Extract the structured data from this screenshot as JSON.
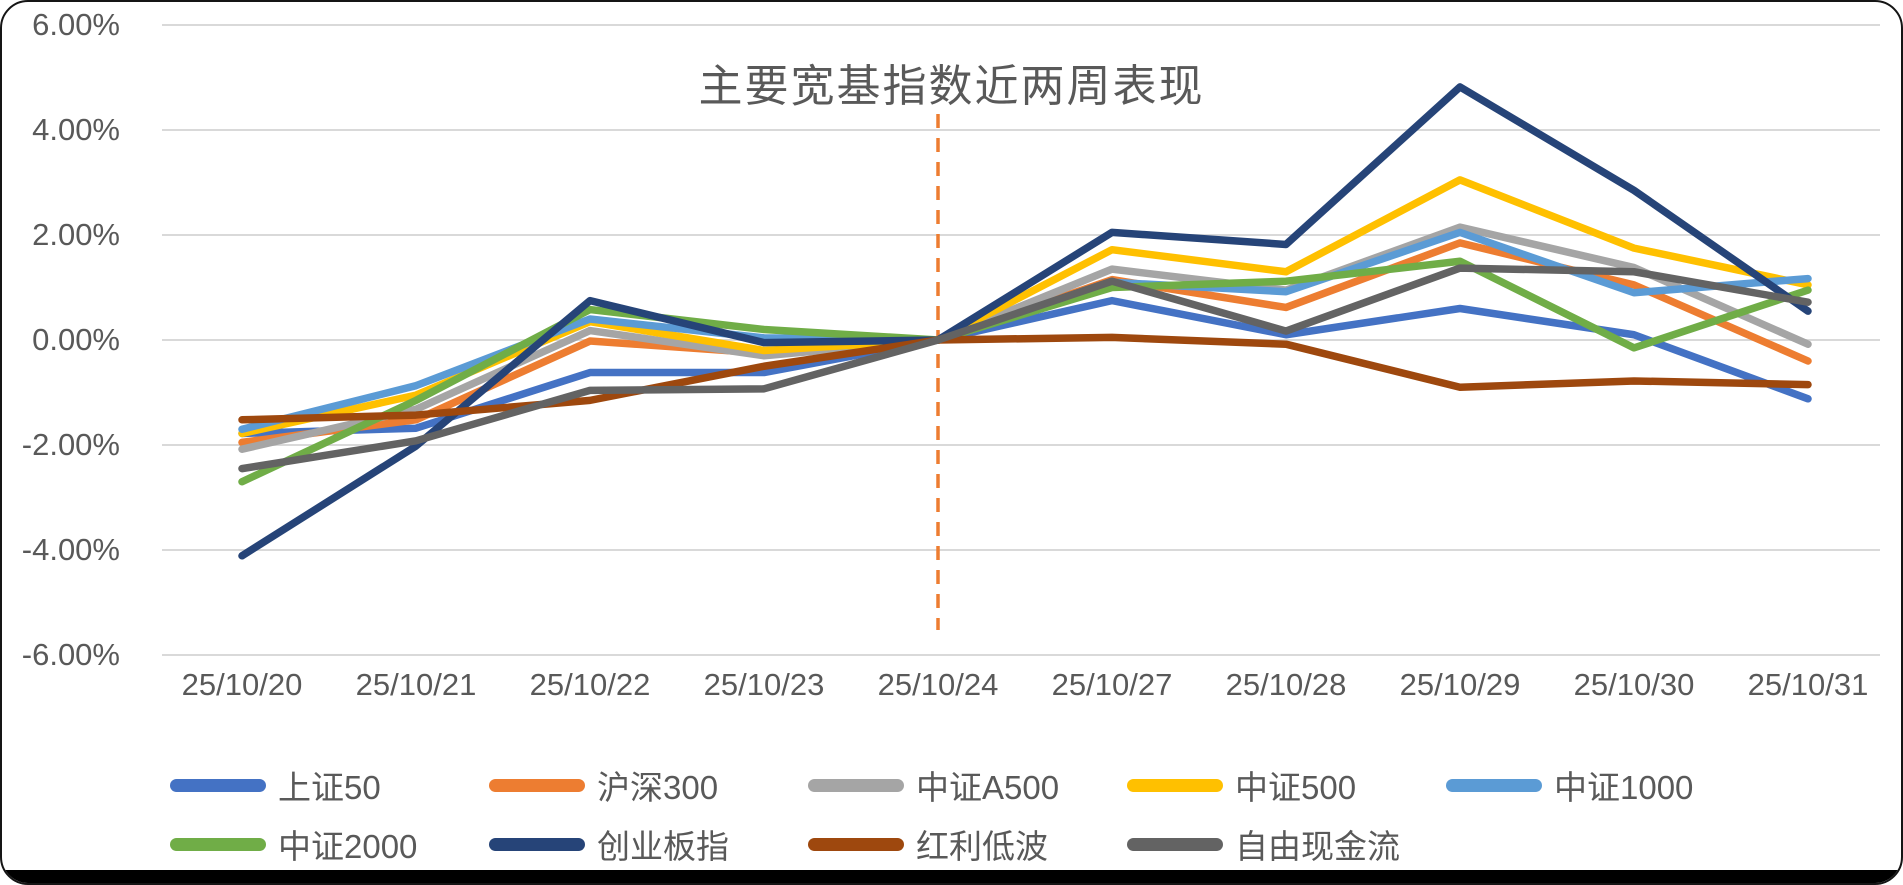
{
  "title": "主要宽基指数近两周表现",
  "accent_colors": {
    "gridline": "#D9D9D9",
    "axis_text": "#595959",
    "divider_line": "#ED7D31",
    "bottom_bar": "#000000"
  },
  "chart_data": {
    "type": "line",
    "title": "主要宽基指数近两周表现",
    "xlabel": "",
    "ylabel": "",
    "ylim": [
      -6,
      6
    ],
    "grid": true,
    "legend_position": "bottom",
    "categories": [
      "25/10/20",
      "25/10/21",
      "25/10/22",
      "25/10/23",
      "25/10/24",
      "25/10/27",
      "25/10/28",
      "25/10/29",
      "25/10/30",
      "25/10/31"
    ],
    "y_ticks": [
      {
        "label": "6.00%",
        "value": 6
      },
      {
        "label": "4.00%",
        "value": 4
      },
      {
        "label": "2.00%",
        "value": 2
      },
      {
        "label": "0.00%",
        "value": 0
      },
      {
        "label": "-2.00%",
        "value": -2
      },
      {
        "label": "-4.00%",
        "value": -4
      },
      {
        "label": "-6.00%",
        "value": -6
      }
    ],
    "annotation": {
      "type": "vline",
      "at_category": "25/10/24",
      "style": "dashed",
      "color": "#ED7D31"
    },
    "series": [
      {
        "name": "上证50",
        "color": "#4472C4",
        "values": [
          -1.78,
          -1.68,
          -0.62,
          -0.62,
          0,
          0.75,
          0.1,
          0.6,
          0.1,
          -1.12
        ]
      },
      {
        "name": "沪深300",
        "color": "#ED7D31",
        "values": [
          -1.95,
          -1.52,
          -0.02,
          -0.25,
          0,
          1.15,
          0.62,
          1.85,
          1.05,
          -0.4
        ]
      },
      {
        "name": "中证A500",
        "color": "#A5A5A5",
        "values": [
          -2.08,
          -1.32,
          0.18,
          -0.3,
          0,
          1.35,
          0.95,
          2.15,
          1.38,
          -0.08
        ]
      },
      {
        "name": "中证500",
        "color": "#FFC000",
        "values": [
          -1.78,
          -1.05,
          0.35,
          -0.2,
          0,
          1.72,
          1.3,
          3.05,
          1.75,
          1.05
        ]
      },
      {
        "name": "中证1000",
        "color": "#5B9BD5",
        "values": [
          -1.7,
          -0.87,
          0.4,
          0.04,
          0,
          1.1,
          0.92,
          2.05,
          0.9,
          1.17
        ]
      },
      {
        "name": "中证2000",
        "color": "#70AD47",
        "values": [
          -2.7,
          -1.15,
          0.58,
          0.2,
          0,
          1.0,
          1.12,
          1.5,
          -0.15,
          0.95
        ]
      },
      {
        "name": "创业板指",
        "color": "#264478",
        "values": [
          -4.11,
          -2.02,
          0.75,
          -0.05,
          0,
          2.05,
          1.82,
          4.82,
          2.85,
          0.55
        ]
      },
      {
        "name": "红利低波",
        "color": "#9E480E",
        "values": [
          -1.52,
          -1.43,
          -1.15,
          -0.5,
          0,
          0.05,
          -0.08,
          -0.9,
          -0.78,
          -0.85
        ]
      },
      {
        "name": "自由现金流",
        "color": "#636363",
        "values": [
          -2.45,
          -1.92,
          -0.96,
          -0.93,
          0,
          1.12,
          0.17,
          1.37,
          1.3,
          0.72
        ]
      }
    ]
  }
}
